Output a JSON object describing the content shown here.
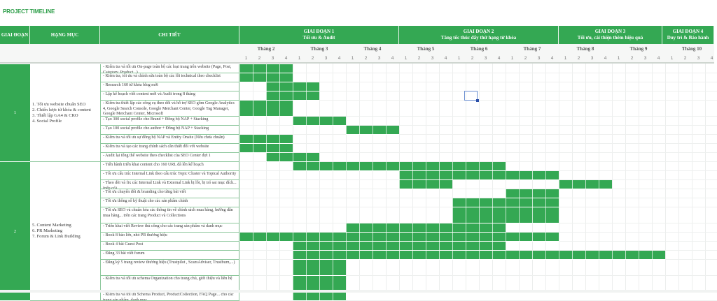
{
  "title": "PROJECT TIMELINE",
  "headers": {
    "phase": "GIAI ĐOẠN",
    "category": "HẠNG MỤC",
    "detail": "CHI TIẾT",
    "phases": [
      {
        "label": "GIAI ĐOẠN 1",
        "sub": "Tối ưu & Audit"
      },
      {
        "label": "GIAI ĐOẠN 2",
        "sub": "Tăng tốc thúc đẩy thứ hạng từ khóa"
      },
      {
        "label": "GIAI ĐOẠN 3",
        "sub": "Tối ưu, cải thiện thêm hiệu quả"
      },
      {
        "label": "GIAI ĐOẠN 4",
        "sub": "Duy trì & Bảo hành"
      }
    ],
    "months": [
      "Tháng 2",
      "Tháng 3",
      "Tháng 4",
      "Tháng 5",
      "Tháng 6",
      "Tháng 7",
      "Tháng 8",
      "Tháng 9",
      "Tháng 10"
    ],
    "weeks": [
      "1",
      "2",
      "3",
      "4"
    ]
  },
  "colors": {
    "accent": "#34a853",
    "title": "#2e9e4a",
    "border": "#8cc79c"
  },
  "groups": [
    {
      "phase": "1",
      "categories": "1. Tối ưu website chuẩn SEO\n2. Chiến lược từ khóa & content\n3. Thiết lập GA4 & CRO\n4. Social Profile",
      "rows": [
        {
          "detail": "- Kiểm tra và tối ưu On-page toàn bộ các loại trang trên website (Page, Post, Category, Product...)",
          "start": 0,
          "end": 3
        },
        {
          "detail": "- Kiểm tra, tối ưu và chỉnh sửa toàn bộ các lỗi technical theo checklist",
          "start": 0,
          "end": 3
        },
        {
          "detail": "- Research 160 từ khóa blog mới",
          "start": 2,
          "end": 5
        },
        {
          "detail": "- Lập kế hoạch viết content mới và Audit trong 8 tháng",
          "start": 2,
          "end": 5
        },
        {
          "detail": "- Kiểm tra thiết lập các công cụ theo dõi và hỗ trợ SEO gồm Google Analytics 4, Google Search Console, Google Merchant Center, Google Tag Manager, Google Merchant Center, Microsoft",
          "start": 0,
          "end": 3,
          "tall": true
        },
        {
          "detail": "- Tạo 300 social profile cho Brand + Đồng bộ NAP + Stacking",
          "start": 4,
          "end": 7
        },
        {
          "detail": "- Tạo 100 social profile cho author + Đồng bộ NAP + Stacking",
          "start": 8,
          "end": 11
        },
        {
          "detail": "- Kiểm tra và tối ưu sự đồng bộ NAP và Entity Onsite (Nếu chưa chuẩn)",
          "start": 0,
          "end": 3
        },
        {
          "detail": "- Kiểm tra và tạo các trang chính sách cần thiết đối với website",
          "start": 0,
          "end": 3
        },
        {
          "detail": "- Audit lại tổng thể website theo checklist của SEO Center đợt 1",
          "start": 2,
          "end": 5
        }
      ]
    },
    {
      "phase": "2",
      "categories": "5. Content Marketing\n6. PR Marketing\n7. Forum & Link Building",
      "rows": [
        {
          "detail": "- Tiến hành triển khai content cho 160 URL đã lên kế hoạch",
          "start": 4,
          "end": 19
        },
        {
          "detail": "- Tối ưu cấu trúc Internal Link theo cấu trúc Topic Cluster và Topical Authority",
          "start": 12,
          "end": 23
        },
        {
          "detail": "- Theo dõi và fix các Internal Link và External Link bị lỗi, bị trỏ sai mục đích... (nếu có)",
          "segments": [
            [
              12,
              15
            ],
            [
              24,
              27
            ]
          ]
        },
        {
          "detail": "- Tối ưu chuyển đổi & branding cho từng bài viết",
          "start": 20,
          "end": 23
        },
        {
          "detail": "- Tối ưu thông số kỹ thuật cho các sản phẩm chính",
          "start": 16,
          "end": 23
        },
        {
          "detail": "- Tối ưu SEO và chuẩn hóa các thông tin về chính sách mua hàng, hướng dẫn mua hàng... trên các trang Product và Collections",
          "start": 16,
          "end": 23,
          "tall": true
        },
        {
          "detail": "- Triển khai viết Review thủ công cho các trang sản phẩm và danh mục",
          "start": 8,
          "end": 19
        },
        {
          "detail": "- Book 8 báo lớn, nhỏ PR thương hiệu",
          "start": 0,
          "end": 23
        },
        {
          "detail": "- Book 4 bài Guest Post",
          "start": 4,
          "end": 19
        },
        {
          "detail": "- Đăng 33 bài viết forum",
          "start": 4,
          "end": 31
        },
        {
          "detail": "- Đăng ký 5 trang review thương hiệu (Trustpilot , ScamAdviser, Trustburn,...)",
          "start": 4,
          "end": 7,
          "tall": true
        },
        {
          "detail": "- Kiểm tra và tối ưu schema Organization cho trang chủ, giới thiệu và liên hệ",
          "start": 4,
          "end": 7,
          "tall": true
        },
        {
          "detail": "- Kiểm tra và tối ưu Schema Product, ProductCollection, FAQ Page... cho các trang sản phẩm, danh mục",
          "start": 4,
          "end": 7
        }
      ]
    }
  ]
}
